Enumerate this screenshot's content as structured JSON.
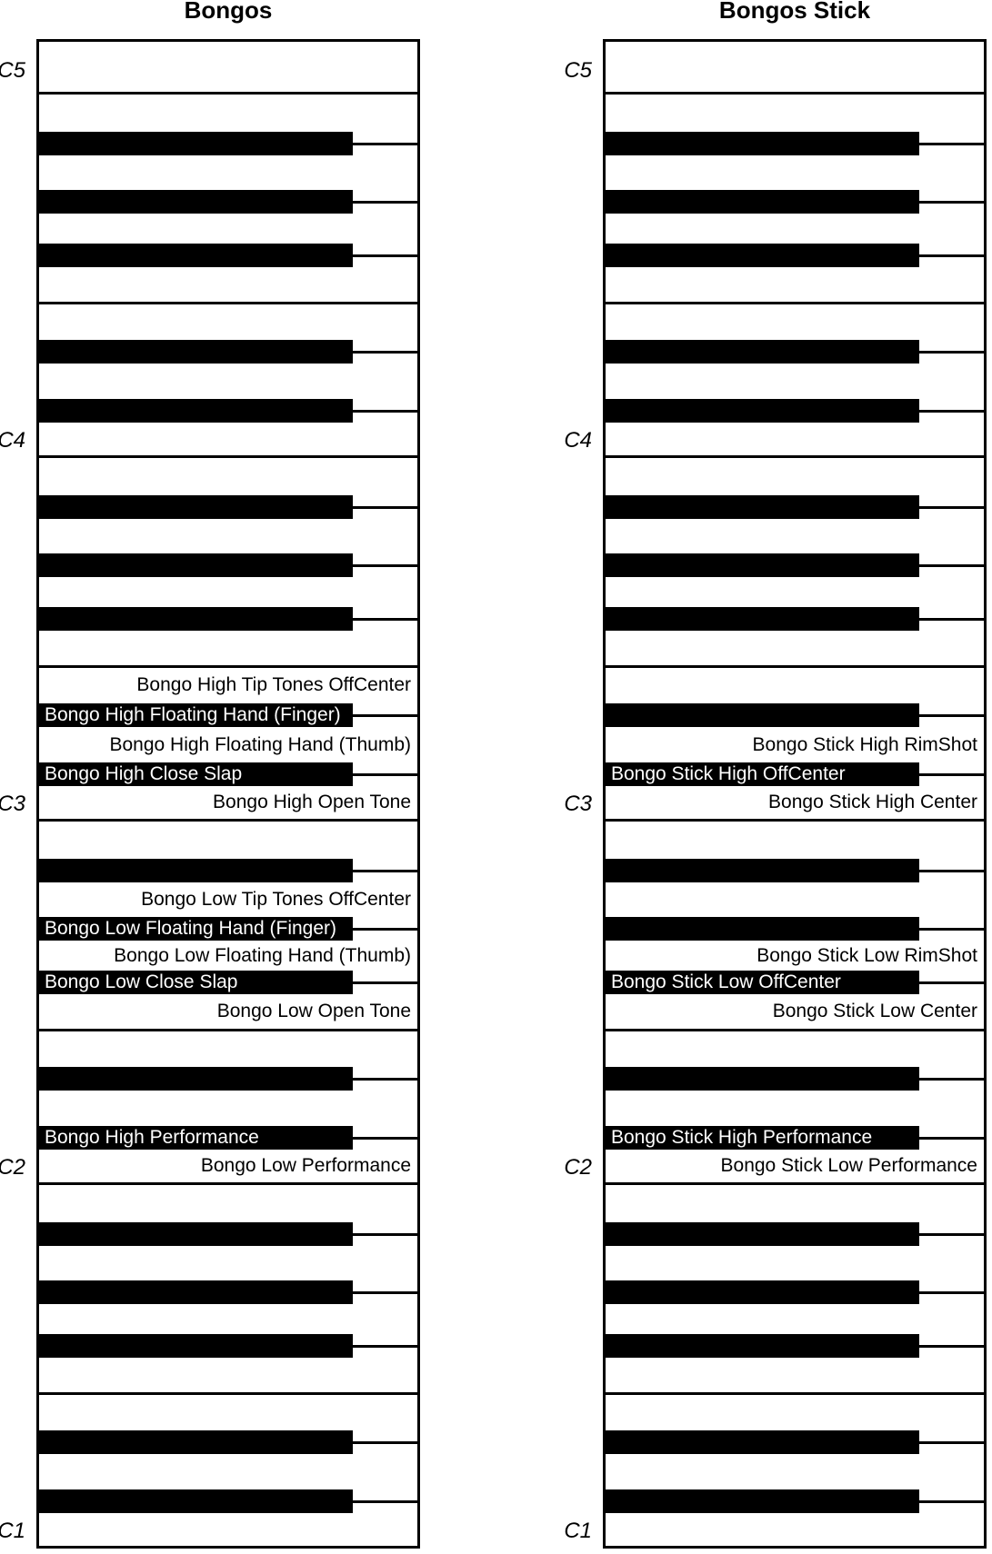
{
  "diagram": {
    "note_range": {
      "lowest": "C1",
      "highest": "C5"
    },
    "colors": {
      "black_key": "#000000",
      "white_key": "#ffffff",
      "text_on_black": "#ffffff",
      "text_on_white": "#000000"
    },
    "keyboards": [
      {
        "title": "Bongos",
        "octave_marks": [
          "C5",
          "C4",
          "C3",
          "C2",
          "C1"
        ],
        "key_labels": [
          {
            "note": "E3",
            "key_color": "white",
            "text": "Bongo High Tip Tones OffCenter"
          },
          {
            "note": "D#3",
            "key_color": "black",
            "text": "Bongo High Floating Hand (Finger)"
          },
          {
            "note": "D3",
            "key_color": "white",
            "text": "Bongo High Floating Hand (Thumb)"
          },
          {
            "note": "C#3",
            "key_color": "black",
            "text": "Bongo High Close Slap"
          },
          {
            "note": "C3",
            "key_color": "white",
            "text": "Bongo High Open Tone"
          },
          {
            "note": "A2",
            "key_color": "white",
            "text": "Bongo Low Tip Tones OffCenter"
          },
          {
            "note": "G#2",
            "key_color": "black",
            "text": "Bongo Low Floating Hand (Finger)"
          },
          {
            "note": "G2",
            "key_color": "white",
            "text": "Bongo Low Floating Hand (Thumb)"
          },
          {
            "note": "F#2",
            "key_color": "black",
            "text": "Bongo Low Close Slap"
          },
          {
            "note": "F2",
            "key_color": "white",
            "text": "Bongo Low Open Tone"
          },
          {
            "note": "C#2",
            "key_color": "black",
            "text": "Bongo High Performance"
          },
          {
            "note": "C2",
            "key_color": "white",
            "text": "Bongo Low Performance"
          }
        ]
      },
      {
        "title": "Bongos Stick",
        "octave_marks": [
          "C5",
          "C4",
          "C3",
          "C2",
          "C1"
        ],
        "key_labels": [
          {
            "note": "D3",
            "key_color": "white",
            "text": "Bongo Stick High RimShot"
          },
          {
            "note": "C#3",
            "key_color": "black",
            "text": "Bongo Stick High OffCenter"
          },
          {
            "note": "C3",
            "key_color": "white",
            "text": "Bongo Stick High Center"
          },
          {
            "note": "G2",
            "key_color": "white",
            "text": "Bongo Stick Low RimShot"
          },
          {
            "note": "F#2",
            "key_color": "black",
            "text": "Bongo Stick Low OffCenter"
          },
          {
            "note": "F2",
            "key_color": "white",
            "text": "Bongo Stick Low Center"
          },
          {
            "note": "C#2",
            "key_color": "black",
            "text": "Bongo Stick High Performance"
          },
          {
            "note": "C2",
            "key_color": "white",
            "text": "Bongo Stick Low Performance"
          }
        ]
      }
    ]
  }
}
